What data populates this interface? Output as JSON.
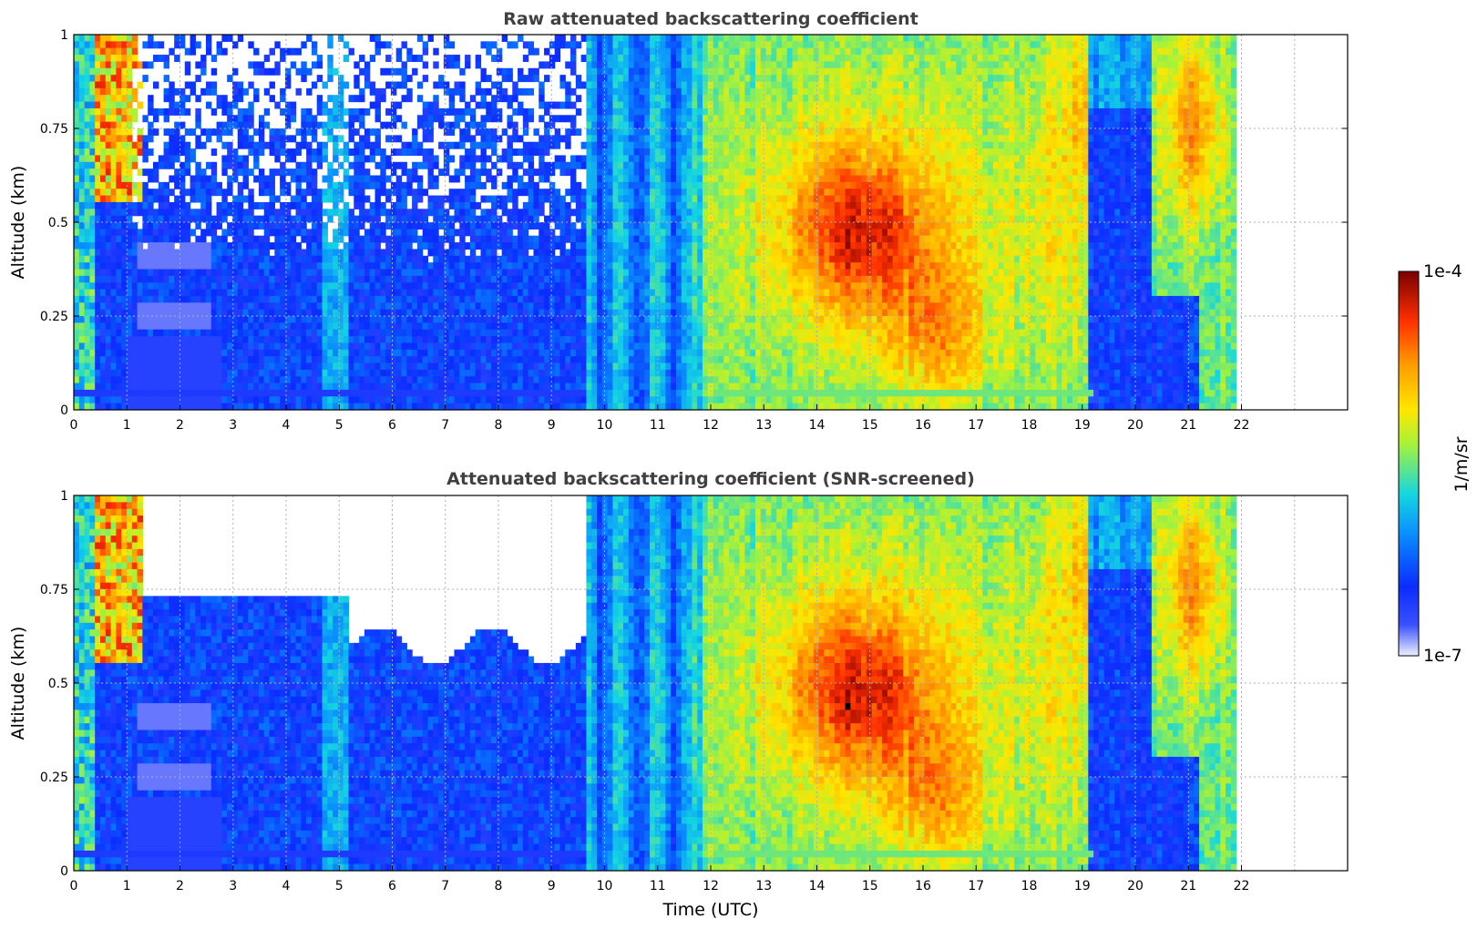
{
  "chart_data": [
    {
      "type": "heatmap",
      "title": "Raw attenuated backscattering coefficient",
      "xlabel": "",
      "ylabel": "Altitude (km)",
      "xlim": [
        0,
        24
      ],
      "ylim": [
        0,
        1
      ],
      "x_ticks": [
        "0",
        "1",
        "2",
        "3",
        "4",
        "5",
        "6",
        "7",
        "8",
        "9",
        "10",
        "11",
        "12",
        "13",
        "14",
        "15",
        "16",
        "17",
        "18",
        "19",
        "20",
        "21",
        "22"
      ],
      "y_ticks": [
        "0",
        "0.25",
        "0.5",
        "0.75",
        "1"
      ],
      "grid": true,
      "data_end_time": 21.9,
      "screened": false
    },
    {
      "type": "heatmap",
      "title": "Attenuated backscattering coefficient (SNR-screened)",
      "xlabel": "Time (UTC)",
      "ylabel": "Altitude (km)",
      "xlim": [
        0,
        24
      ],
      "ylim": [
        0,
        1
      ],
      "x_ticks": [
        "0",
        "1",
        "2",
        "3",
        "4",
        "5",
        "6",
        "7",
        "8",
        "9",
        "10",
        "11",
        "12",
        "13",
        "14",
        "15",
        "16",
        "17",
        "18",
        "19",
        "20",
        "21",
        "22"
      ],
      "y_ticks": [
        "0",
        "0.25",
        "0.5",
        "0.75",
        "1"
      ],
      "grid": true,
      "data_end_time": 21.9,
      "screened": true
    }
  ],
  "colorbar": {
    "label": "1/m/sr",
    "max_label": "1e-4",
    "min_label": "1e-7",
    "scale": "log",
    "colormap": [
      "#eef0ff",
      "#1f3cff",
      "#0b7bff",
      "#14d6e0",
      "#a6f23a",
      "#ffe600",
      "#ff9a00",
      "#ff3a00",
      "#c80000",
      "#7a0000"
    ]
  }
}
